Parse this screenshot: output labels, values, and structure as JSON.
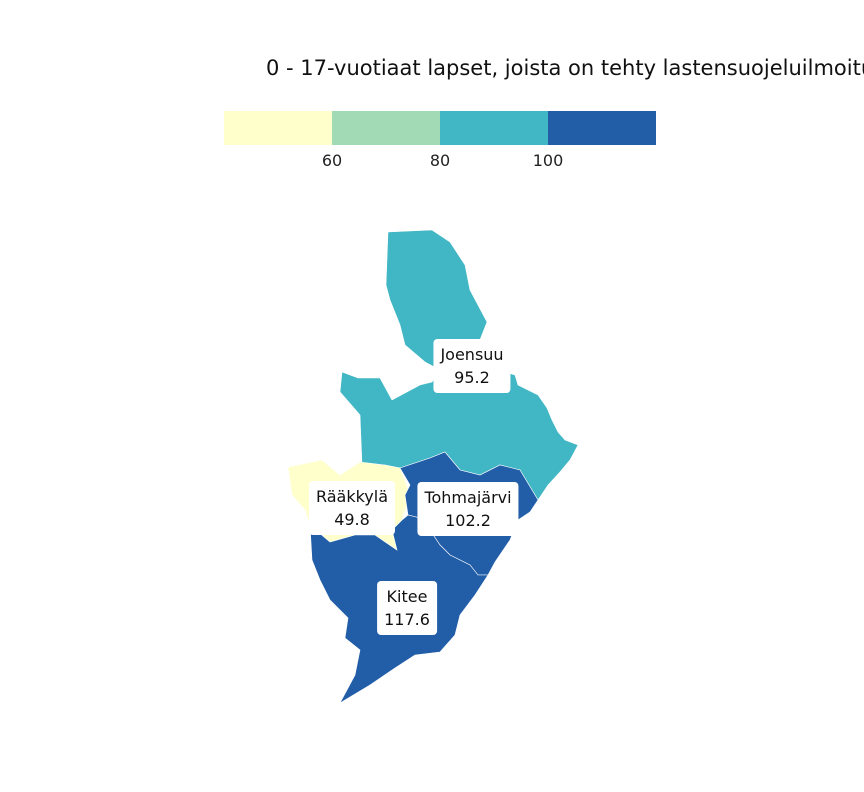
{
  "title": "0 - 17-vuotiaat lapset, joista on tehty lastensuojeluilmoitu",
  "legend": {
    "colors": [
      "#ffffcc",
      "#a1dab4",
      "#41b6c4",
      "#225ea8"
    ],
    "ticks": [
      "60",
      "80",
      "100"
    ]
  },
  "regions": [
    {
      "name": "Joensuu",
      "value": "95.2",
      "color": "#41b6c4"
    },
    {
      "name": "Rääkkylä",
      "value": "49.8",
      "color": "#ffffcc"
    },
    {
      "name": "Tohmajärvi",
      "value": "102.2",
      "color": "#225ea8"
    },
    {
      "name": "Kitee",
      "value": "117.6",
      "color": "#225ea8"
    }
  ]
}
